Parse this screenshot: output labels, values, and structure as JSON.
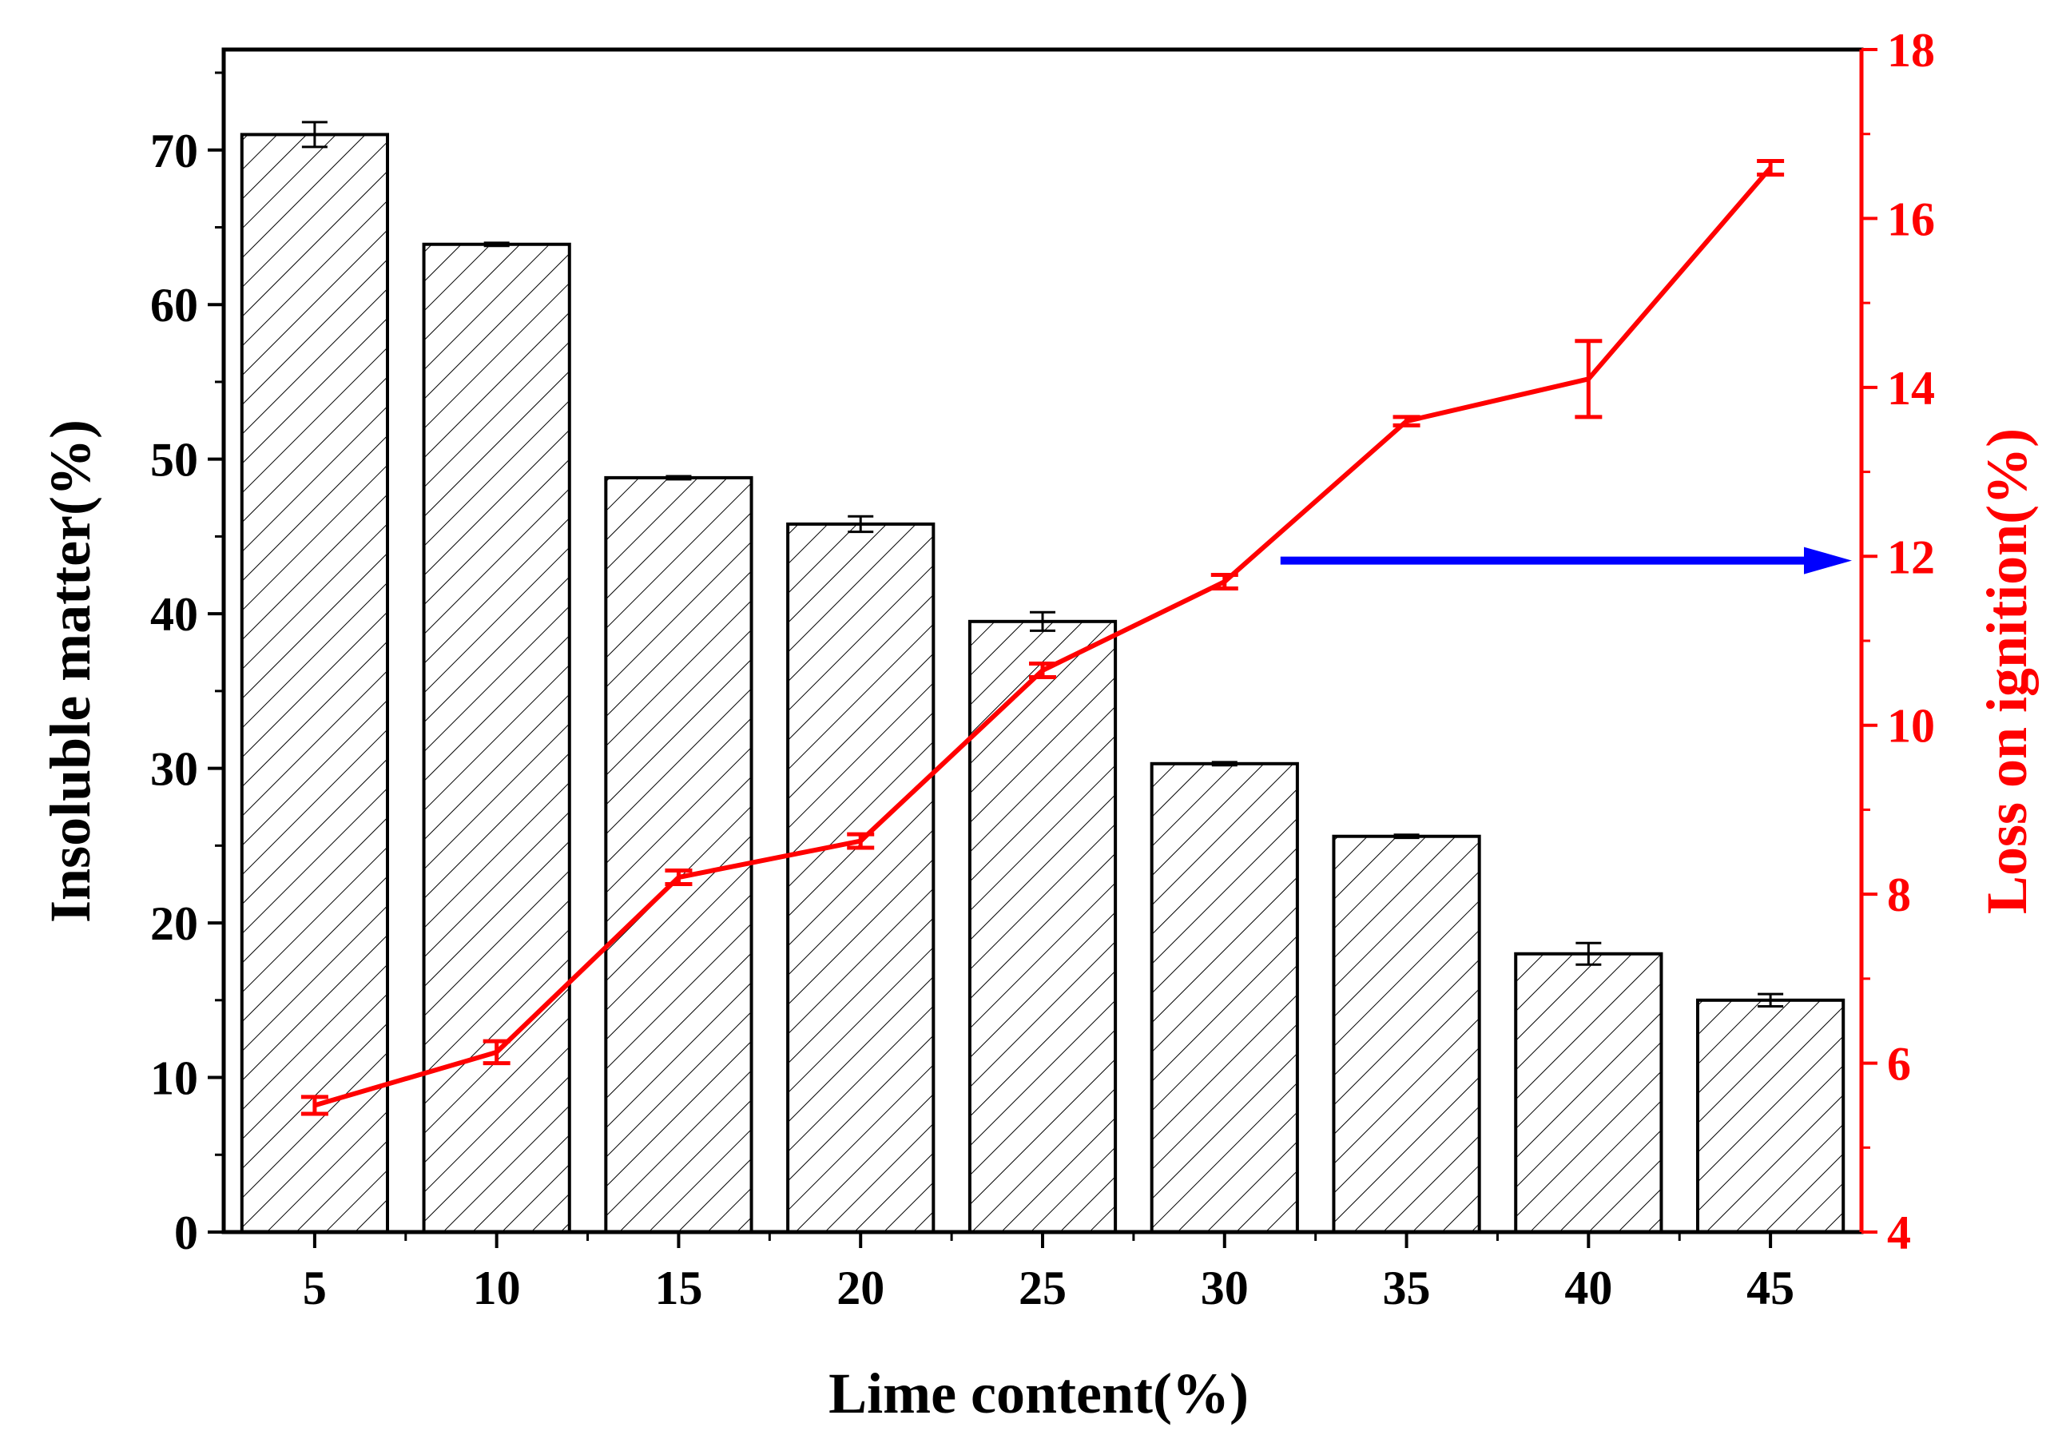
{
  "chart_data": {
    "type": "bar",
    "categories": [
      "5",
      "10",
      "15",
      "20",
      "25",
      "30",
      "35",
      "40",
      "45"
    ],
    "xlabel": "Lime content(%)",
    "ylabel": "Insoluble matter(%)",
    "y2label": "Loss on ignition(%)",
    "ylim": [
      0,
      76.5
    ],
    "y2lim": [
      4,
      18
    ],
    "yticks": [
      "0",
      "10",
      "20",
      "30",
      "40",
      "50",
      "60",
      "70"
    ],
    "y2ticks": [
      "4",
      "6",
      "8",
      "10",
      "12",
      "14",
      "16",
      "18"
    ],
    "grid": false,
    "series": [
      {
        "type": "bar",
        "axis": "left",
        "pattern": "diagonal-hatch",
        "values": [
          71.0,
          63.9,
          48.8,
          45.8,
          39.5,
          30.3,
          25.6,
          18.0,
          15.0
        ],
        "errors": [
          0.8,
          0.1,
          0.1,
          0.5,
          0.6,
          0.1,
          0.1,
          0.7,
          0.4
        ],
        "color": "#000000"
      },
      {
        "type": "line",
        "axis": "right",
        "values": [
          5.5,
          6.13,
          8.2,
          8.63,
          10.65,
          11.7,
          13.6,
          14.1,
          16.6
        ],
        "errors": [
          0.1,
          0.13,
          0.08,
          0.08,
          0.08,
          0.08,
          0.05,
          0.45,
          0.08
        ],
        "color": "#ff0000"
      }
    ],
    "annotations": [
      {
        "type": "arrow",
        "direction": "right",
        "points_to": "right-axis",
        "at_y2": 11.95,
        "from_x": "30",
        "color": "#0000ff"
      }
    ]
  }
}
